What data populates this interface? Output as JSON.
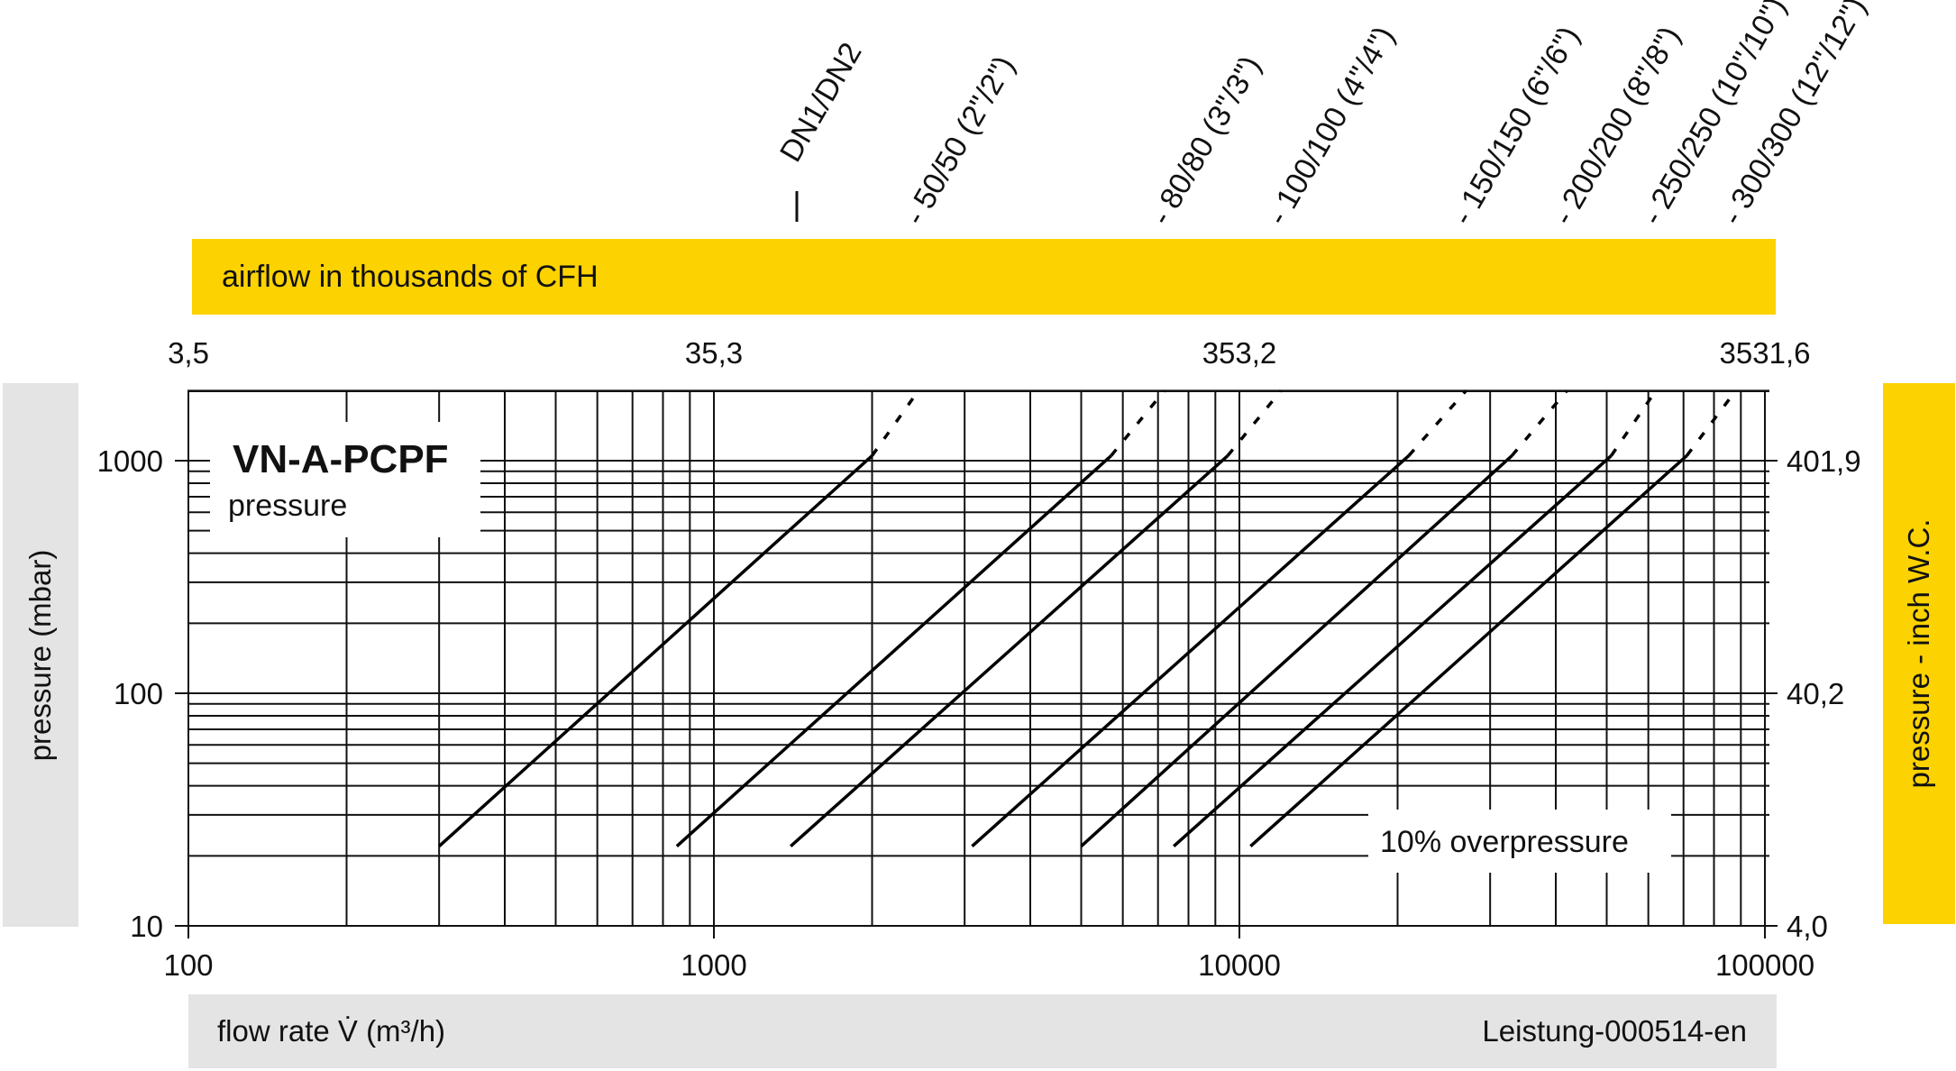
{
  "top_band": {
    "label": "airflow in thousands of CFH",
    "color": "#fcd200"
  },
  "bottom_band": {
    "label": "flow rate V̇ (m³/h)",
    "doc_id": "Leistung-000514-en",
    "color": "#e4e4e4"
  },
  "left_band": {
    "label": "pressure (mbar)",
    "color": "#e4e4e4"
  },
  "right_band": {
    "label": "pressure  - inch W.C.",
    "color": "#fcd200"
  },
  "chart_data": {
    "type": "line",
    "title": "VN-A-PCPF",
    "subtitle": "pressure",
    "x_scale": "log",
    "y_scale": "log",
    "xlim": [
      100,
      100000
    ],
    "ylim": [
      10,
      2000
    ],
    "x_ticks": [
      {
        "value": 100,
        "label": "100"
      },
      {
        "value": 1000,
        "label": "1000"
      },
      {
        "value": 10000,
        "label": "10000"
      },
      {
        "value": 100000,
        "label": "100000"
      }
    ],
    "x2_ticks": [
      {
        "value": 100,
        "label": "3,5"
      },
      {
        "value": 1000,
        "label": "35,3"
      },
      {
        "value": 10000,
        "label": "353,2"
      },
      {
        "value": 100000,
        "label": "3531,6"
      }
    ],
    "y_ticks": [
      {
        "value": 10,
        "label": "10"
      },
      {
        "value": 100,
        "label": "100"
      },
      {
        "value": 1000,
        "label": "1000"
      }
    ],
    "y2_ticks": [
      {
        "value": 10,
        "label": "4,0"
      },
      {
        "value": 100,
        "label": "40,2"
      },
      {
        "value": 1000,
        "label": "401,9"
      }
    ],
    "series_header": "DN1/DN2",
    "series": [
      {
        "name": "50/50 (2\"/2\")",
        "points": [
          [
            300,
            22
          ],
          [
            2000,
            1050
          ]
        ],
        "dotted_to": [
          2450,
          2000
        ]
      },
      {
        "name": "80/80 (3\"/3\")",
        "points": [
          [
            850,
            22
          ],
          [
            5700,
            1050
          ]
        ],
        "dotted_to": [
          7200,
          2000
        ]
      },
      {
        "name": "100/100 (4\"/4\")",
        "points": [
          [
            1400,
            22
          ],
          [
            9500,
            1050
          ]
        ],
        "dotted_to": [
          12000,
          2000
        ]
      },
      {
        "name": "150/150 (6\"/6\")",
        "points": [
          [
            3100,
            22
          ],
          [
            21000,
            1050
          ]
        ],
        "dotted_to": [
          27000,
          2000
        ]
      },
      {
        "name": "200/200 (8\"/8\")",
        "points": [
          [
            5000,
            22
          ],
          [
            33000,
            1050
          ]
        ],
        "dotted_to": [
          42000,
          2000
        ]
      },
      {
        "name": "250/250 (10\"/10\")",
        "points": [
          [
            7500,
            22
          ],
          [
            51000,
            1050
          ]
        ],
        "dotted_to": [
          62000,
          2000
        ]
      },
      {
        "name": "300/300 (12\"/12\")",
        "points": [
          [
            10500,
            22
          ],
          [
            71000,
            1050
          ]
        ],
        "dotted_to": [
          88000,
          2000
        ]
      }
    ],
    "annotation": "10% overpressure",
    "grid": true
  }
}
